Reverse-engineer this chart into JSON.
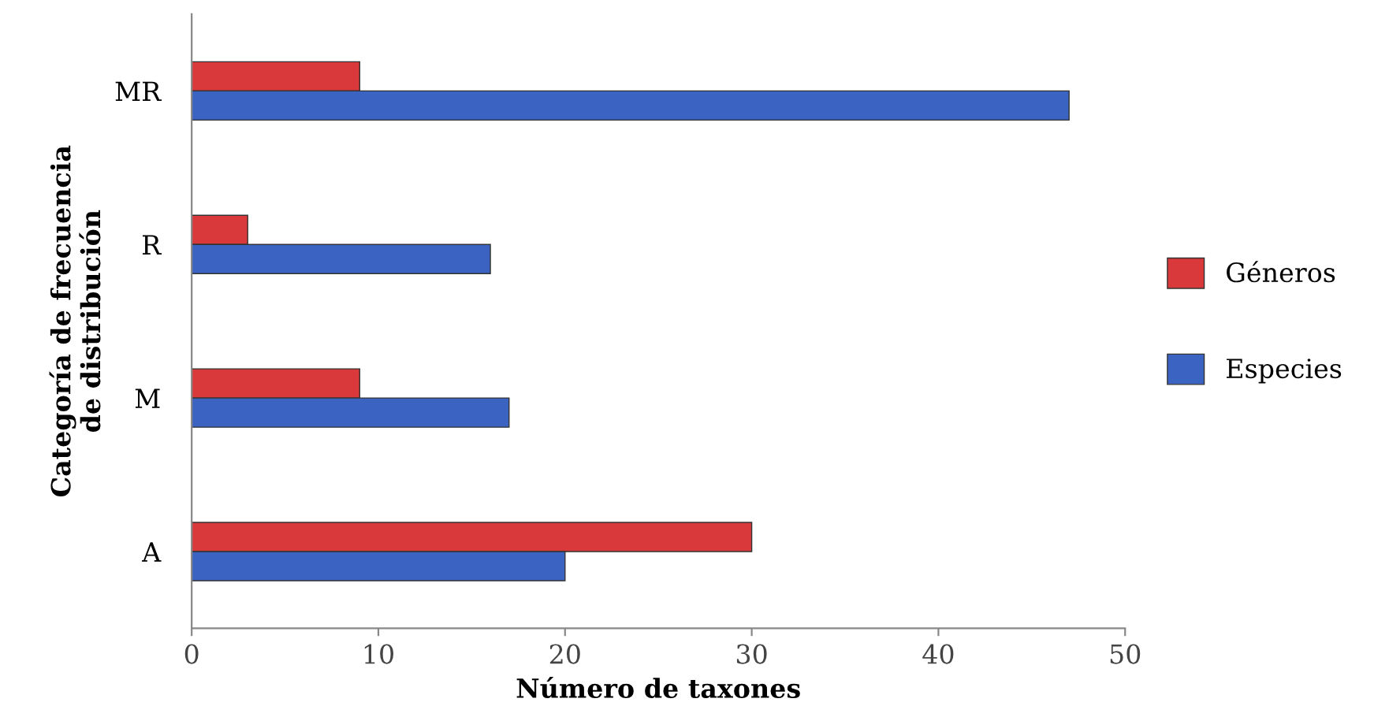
{
  "chart_data": {
    "type": "bar",
    "orientation": "horizontal",
    "xlabel": "Número de taxones",
    "ylabel": "Categoría de frecuencia\nde distribución",
    "categories": [
      "MR",
      "R",
      "M",
      "A"
    ],
    "series": [
      {
        "name": "Géneros",
        "color": "#d9393b",
        "values": [
          9,
          3,
          9,
          30
        ]
      },
      {
        "name": "Especies",
        "color": "#3b63c2",
        "values": [
          47,
          16,
          17,
          20
        ]
      }
    ],
    "xlim": [
      0,
      50
    ],
    "xticks": [
      0,
      10,
      20,
      30,
      40,
      50
    ],
    "grid": false,
    "legend": "right"
  }
}
